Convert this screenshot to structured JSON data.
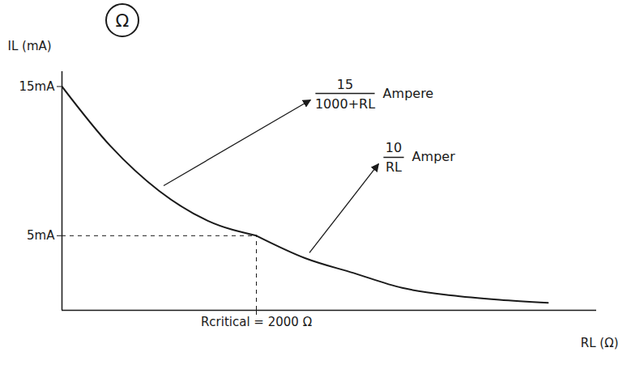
{
  "chart_data": {
    "type": "line",
    "title": "Ω",
    "x_label": "RL (Ω)",
    "y_label": "IL (mA)",
    "color": "#1a1a1a",
    "line_style": "solid",
    "xlim": [
      0,
      5500
    ],
    "ylim": [
      0,
      16
    ],
    "xticks": [
      {
        "value": 2000,
        "label": "Rcritical = 2000 Ω"
      }
    ],
    "yticks": [
      {
        "value": 5,
        "label": "5mA"
      },
      {
        "value": 15,
        "label": "15mA"
      }
    ],
    "series": [
      {
        "x": [
          0,
          500,
          1000,
          1500,
          2000
        ],
        "values": [
          15,
          11,
          8,
          6,
          5
        ],
        "annotation": {
          "numerator": "15",
          "denominator": "1000+RL",
          "unit": "Ampere"
        }
      },
      {
        "x": [
          2000,
          2500,
          3000,
          3500,
          4000,
          4500,
          5000
        ],
        "values": [
          5,
          3.5,
          2.5,
          1.5,
          1,
          0.7,
          0.5
        ],
        "annotation": {
          "numerator": "10",
          "denominator": "RL",
          "unit": "Amper"
        }
      }
    ]
  }
}
